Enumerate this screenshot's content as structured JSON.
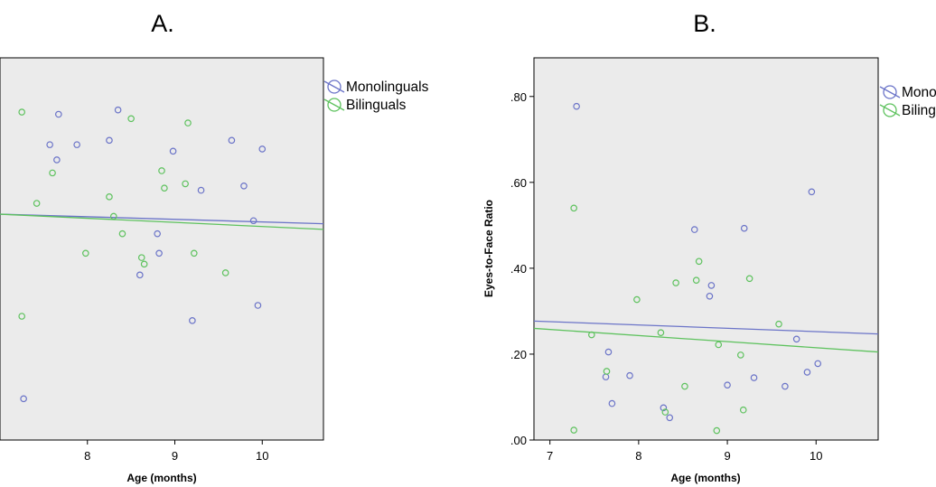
{
  "panels": [
    {
      "title": "A."
    },
    {
      "title": "B."
    }
  ],
  "colors": {
    "plot_background": "#ebebeb",
    "monolinguals": "#6b74c8",
    "bilinguals": "#5ec25e"
  },
  "chart_data": [
    {
      "type": "scatter",
      "title": "A.",
      "xlabel": "Age (months)",
      "ylabel": "",
      "xlim": [
        7.0,
        10.7
      ],
      "ylim": [
        0.0,
        0.88
      ],
      "x_ticks": [
        "8",
        "9",
        "10"
      ],
      "y_ticks": [],
      "grid": false,
      "legend": "right",
      "series": [
        {
          "name": "Monolinguals",
          "marker": "open-circle",
          "points": [
            [
              7.27,
              0.095
            ],
            [
              7.57,
              0.68
            ],
            [
              7.65,
              0.645
            ],
            [
              7.67,
              0.75
            ],
            [
              7.88,
              0.68
            ],
            [
              8.25,
              0.69
            ],
            [
              8.35,
              0.76
            ],
            [
              8.6,
              0.38
            ],
            [
              8.8,
              0.475
            ],
            [
              8.82,
              0.43
            ],
            [
              8.98,
              0.665
            ],
            [
              9.2,
              0.275
            ],
            [
              9.3,
              0.575
            ],
            [
              9.65,
              0.69
            ],
            [
              9.79,
              0.585
            ],
            [
              9.9,
              0.505
            ],
            [
              9.95,
              0.31
            ],
            [
              10.0,
              0.67
            ]
          ],
          "fit_line": [
            [
              7.0,
              0.52
            ],
            [
              10.7,
              0.498
            ]
          ]
        },
        {
          "name": "Bilinguals",
          "marker": "open-circle",
          "points": [
            [
              7.25,
              0.285
            ],
            [
              7.25,
              0.755
            ],
            [
              7.6,
              0.615
            ],
            [
              7.42,
              0.545
            ],
            [
              7.98,
              0.43
            ],
            [
              8.25,
              0.56
            ],
            [
              8.3,
              0.515
            ],
            [
              8.4,
              0.475
            ],
            [
              8.5,
              0.74
            ],
            [
              8.62,
              0.42
            ],
            [
              8.65,
              0.405
            ],
            [
              8.85,
              0.62
            ],
            [
              8.88,
              0.58
            ],
            [
              9.12,
              0.59
            ],
            [
              9.15,
              0.73
            ],
            [
              9.22,
              0.43
            ],
            [
              9.58,
              0.385
            ]
          ],
          "fit_line": [
            [
              7.0,
              0.52
            ],
            [
              10.7,
              0.485
            ]
          ]
        }
      ]
    },
    {
      "type": "scatter",
      "title": "B.",
      "xlabel": "Age (months)",
      "ylabel": "Eyes-to-Face Ratio",
      "xlim": [
        6.82,
        10.7
      ],
      "ylim": [
        0.0,
        0.89
      ],
      "x_ticks": [
        "7",
        "8",
        "9",
        "10"
      ],
      "y_ticks": [
        ".00",
        ".20",
        ".40",
        ".60",
        ".80"
      ],
      "grid": false,
      "legend": "right",
      "series": [
        {
          "name": "Monolinguals",
          "marker": "open-circle",
          "points": [
            [
              7.3,
              0.777
            ],
            [
              7.63,
              0.147
            ],
            [
              7.66,
              0.205
            ],
            [
              7.7,
              0.085
            ],
            [
              7.9,
              0.15
            ],
            [
              8.28,
              0.075
            ],
            [
              8.35,
              0.052
            ],
            [
              8.63,
              0.49
            ],
            [
              8.8,
              0.335
            ],
            [
              8.82,
              0.36
            ],
            [
              9.0,
              0.128
            ],
            [
              9.19,
              0.493
            ],
            [
              9.3,
              0.145
            ],
            [
              9.65,
              0.125
            ],
            [
              9.78,
              0.235
            ],
            [
              9.9,
              0.158
            ],
            [
              9.95,
              0.578
            ],
            [
              10.02,
              0.178
            ]
          ],
          "fit_line": [
            [
              6.82,
              0.277
            ],
            [
              10.7,
              0.247
            ]
          ]
        },
        {
          "name": "Bilinguals",
          "marker": "open-circle",
          "points": [
            [
              7.27,
              0.023
            ],
            [
              7.27,
              0.54
            ],
            [
              7.47,
              0.245
            ],
            [
              7.64,
              0.16
            ],
            [
              7.98,
              0.327
            ],
            [
              8.25,
              0.25
            ],
            [
              8.3,
              0.065
            ],
            [
              8.42,
              0.366
            ],
            [
              8.52,
              0.125
            ],
            [
              8.65,
              0.372
            ],
            [
              8.68,
              0.416
            ],
            [
              8.88,
              0.022
            ],
            [
              8.9,
              0.222
            ],
            [
              9.15,
              0.198
            ],
            [
              9.18,
              0.07
            ],
            [
              9.25,
              0.376
            ],
            [
              9.58,
              0.27
            ]
          ],
          "fit_line": [
            [
              6.82,
              0.26
            ],
            [
              10.7,
              0.205
            ]
          ]
        }
      ]
    }
  ]
}
